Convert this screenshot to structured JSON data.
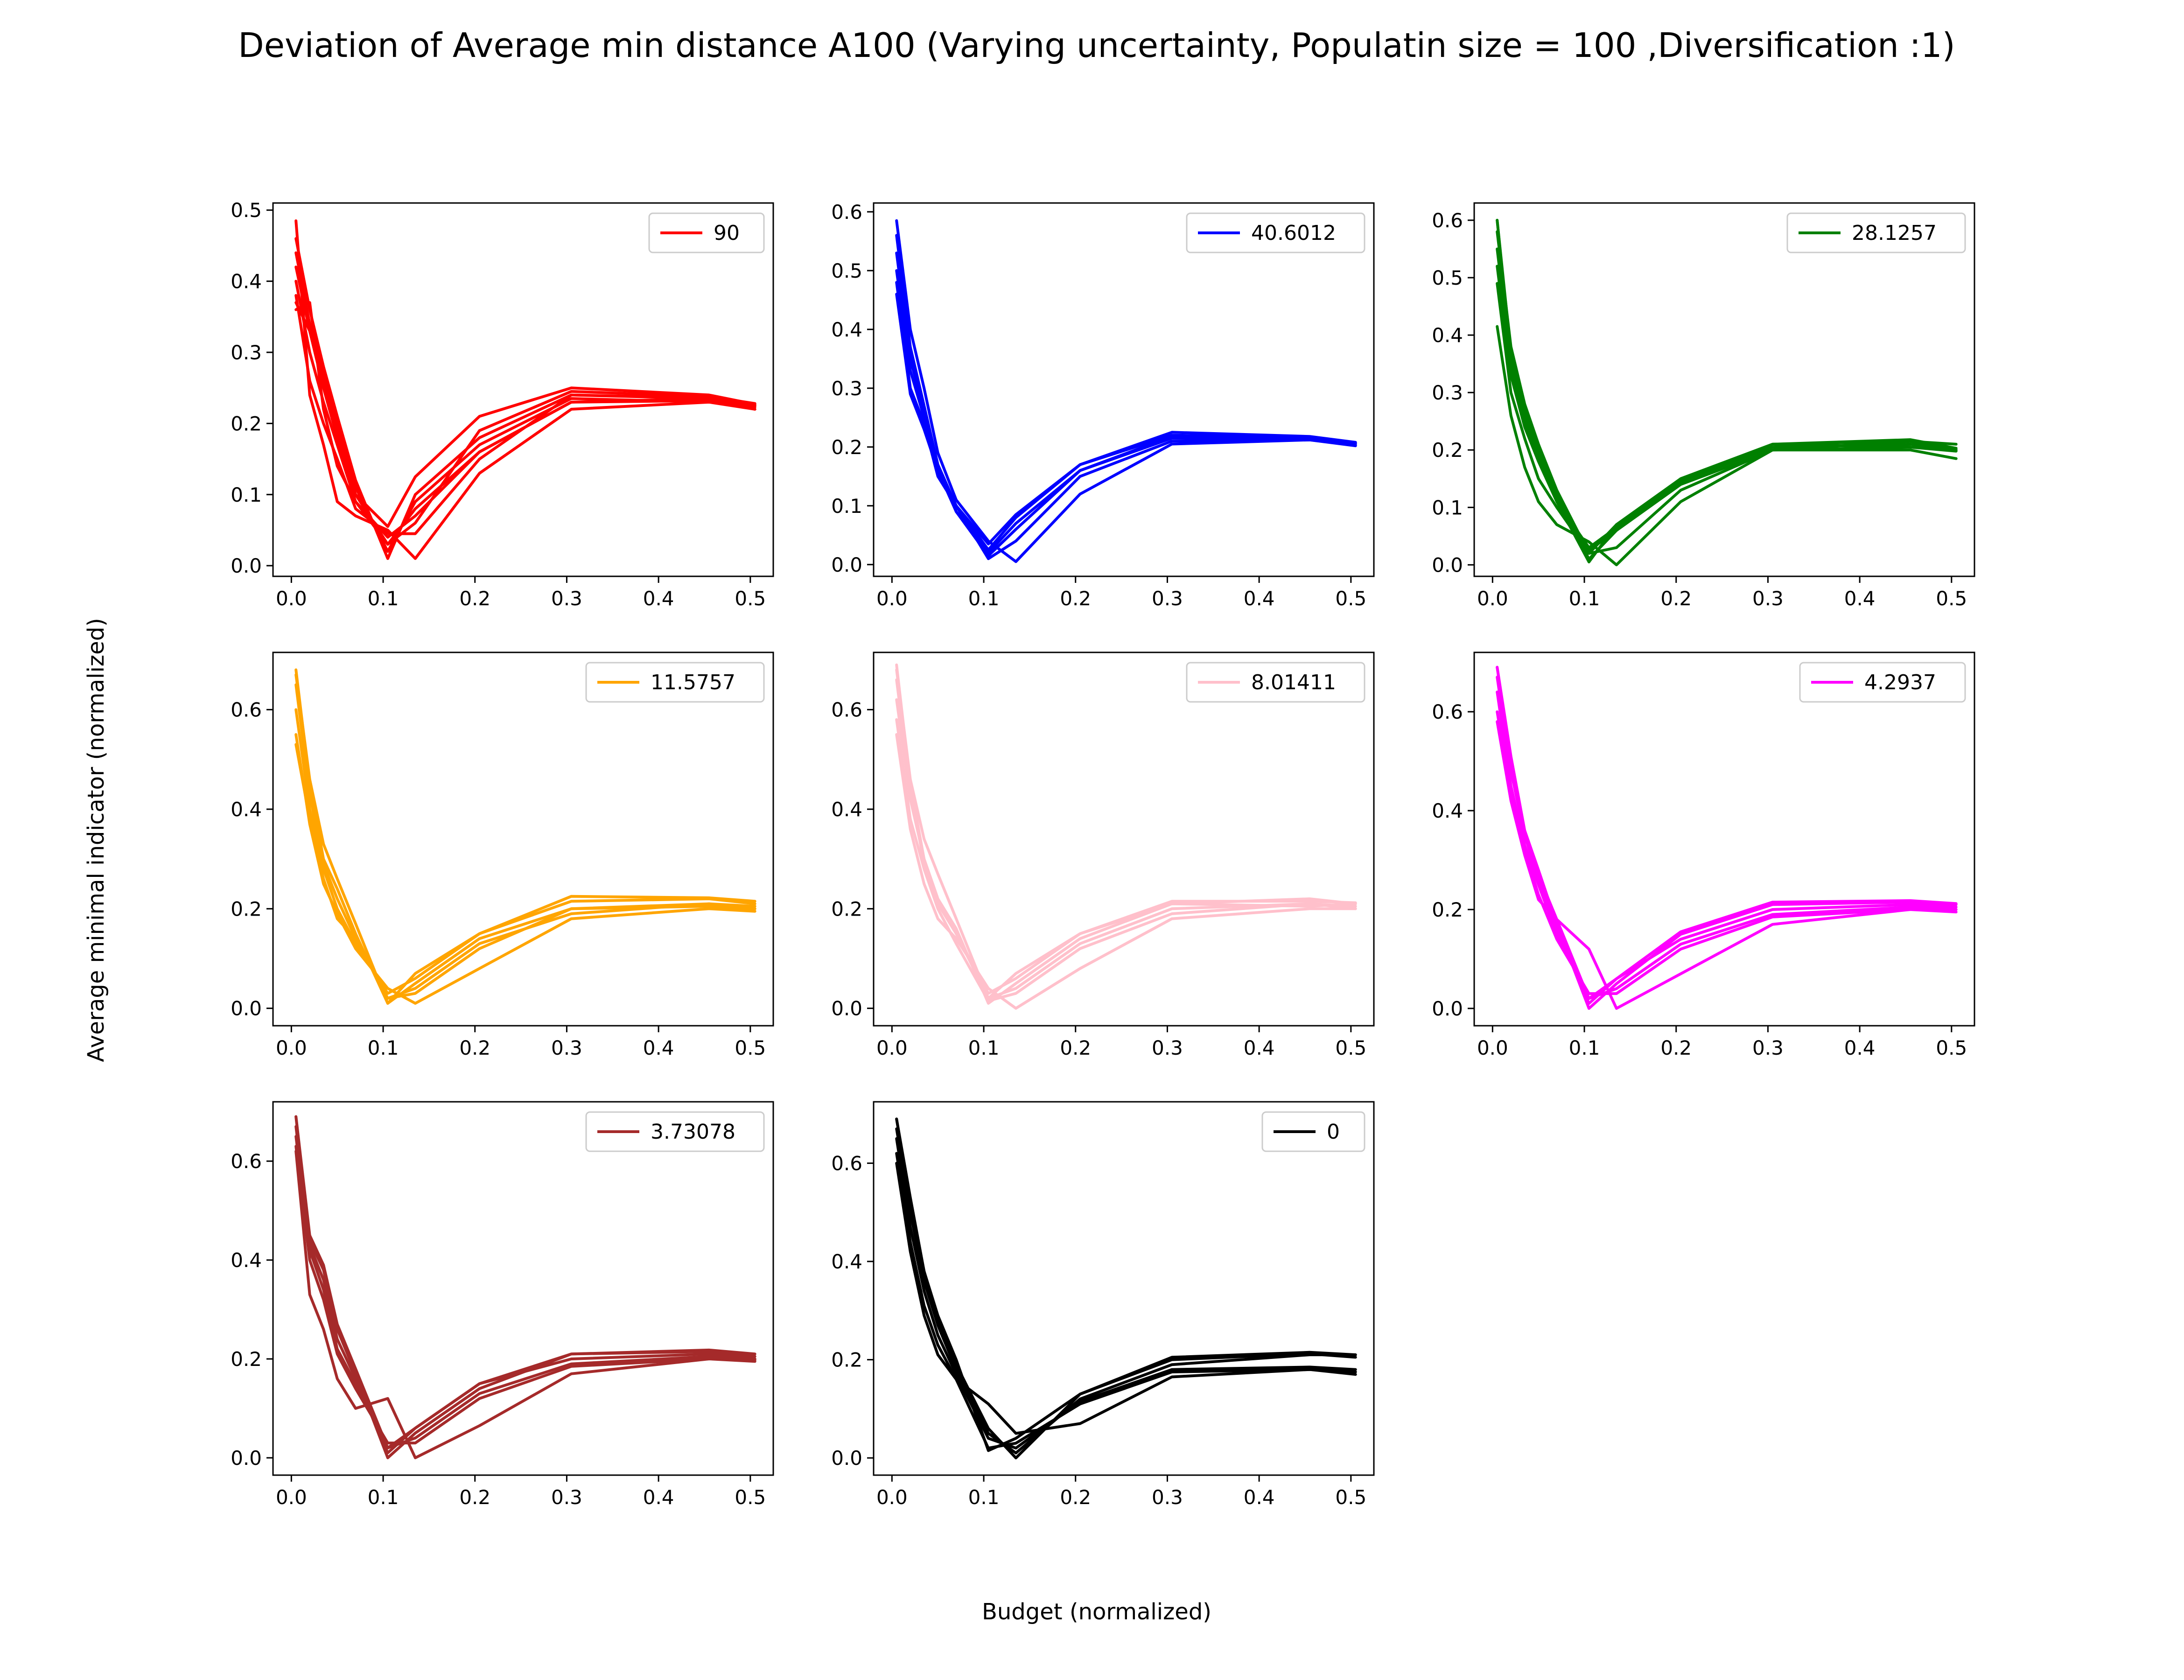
{
  "figure": {
    "title": "Deviation of Average min distance A100 (Varying uncertainty, Populatin size = 100 ,Diversification :1)",
    "xlabel": "Budget (normalized)",
    "ylabel": "Average minimal indicator (normalized)"
  },
  "chart_data": [
    {
      "type": "line",
      "legend": "90",
      "color": "#ff0000",
      "legend_position": "upper right",
      "xlim": [
        -0.02,
        0.525
      ],
      "ylim": [
        -0.015,
        0.51
      ],
      "xticks": [
        0.0,
        0.1,
        0.2,
        0.3,
        0.4,
        0.5
      ],
      "yticks": [
        0.0,
        0.1,
        0.2,
        0.3,
        0.4,
        0.5
      ],
      "x": [
        0.005,
        0.02,
        0.035,
        0.05,
        0.07,
        0.105,
        0.135,
        0.205,
        0.305,
        0.455,
        0.505
      ],
      "series": [
        {
          "values": [
            0.485,
            0.24,
            0.17,
            0.09,
            0.07,
            0.05,
            0.01,
            0.13,
            0.22,
            0.23,
            0.225
          ]
        },
        {
          "values": [
            0.46,
            0.36,
            0.28,
            0.21,
            0.12,
            0.01,
            0.1,
            0.18,
            0.24,
            0.235,
            0.22
          ]
        },
        {
          "values": [
            0.44,
            0.34,
            0.27,
            0.2,
            0.11,
            0.02,
            0.09,
            0.17,
            0.235,
            0.23,
            0.22
          ]
        },
        {
          "values": [
            0.42,
            0.33,
            0.26,
            0.19,
            0.1,
            0.03,
            0.08,
            0.16,
            0.23,
            0.232,
            0.223
          ]
        },
        {
          "values": [
            0.4,
            0.3,
            0.23,
            0.17,
            0.09,
            0.04,
            0.07,
            0.16,
            0.23,
            0.235,
            0.225
          ]
        },
        {
          "values": [
            0.38,
            0.26,
            0.2,
            0.15,
            0.08,
            0.045,
            0.045,
            0.15,
            0.24,
            0.236,
            0.226
          ]
        },
        {
          "values": [
            0.36,
            0.37,
            0.22,
            0.14,
            0.09,
            0.03,
            0.06,
            0.19,
            0.245,
            0.238,
            0.228
          ]
        },
        {
          "values": [
            0.37,
            0.33,
            0.25,
            0.18,
            0.1,
            0.055,
            0.125,
            0.21,
            0.25,
            0.24,
            0.227
          ]
        }
      ]
    },
    {
      "type": "line",
      "legend": "40.6012",
      "color": "#0000ff",
      "legend_position": "upper right",
      "xlim": [
        -0.02,
        0.525
      ],
      "ylim": [
        -0.02,
        0.615
      ],
      "xticks": [
        0.0,
        0.1,
        0.2,
        0.3,
        0.4,
        0.5
      ],
      "yticks": [
        0.0,
        0.1,
        0.2,
        0.3,
        0.4,
        0.5,
        0.6
      ],
      "x": [
        0.005,
        0.02,
        0.035,
        0.05,
        0.07,
        0.105,
        0.135,
        0.205,
        0.305,
        0.455,
        0.505
      ],
      "series": [
        {
          "values": [
            0.585,
            0.4,
            0.3,
            0.19,
            0.11,
            0.04,
            0.005,
            0.12,
            0.205,
            0.212,
            0.202
          ]
        },
        {
          "values": [
            0.56,
            0.37,
            0.27,
            0.17,
            0.1,
            0.01,
            0.04,
            0.15,
            0.21,
            0.212,
            0.203
          ]
        },
        {
          "values": [
            0.53,
            0.35,
            0.26,
            0.17,
            0.09,
            0.015,
            0.06,
            0.16,
            0.215,
            0.214,
            0.205
          ]
        },
        {
          "values": [
            0.5,
            0.33,
            0.25,
            0.16,
            0.09,
            0.02,
            0.07,
            0.16,
            0.218,
            0.215,
            0.206
          ]
        },
        {
          "values": [
            0.48,
            0.3,
            0.24,
            0.15,
            0.1,
            0.025,
            0.08,
            0.17,
            0.22,
            0.216,
            0.207
          ]
        },
        {
          "values": [
            0.46,
            0.29,
            0.23,
            0.16,
            0.1,
            0.035,
            0.085,
            0.17,
            0.225,
            0.218,
            0.208
          ]
        }
      ]
    },
    {
      "type": "line",
      "legend": "28.1257",
      "color": "#008000",
      "legend_position": "upper right",
      "xlim": [
        -0.02,
        0.525
      ],
      "ylim": [
        -0.02,
        0.63
      ],
      "xticks": [
        0.0,
        0.1,
        0.2,
        0.3,
        0.4,
        0.5
      ],
      "yticks": [
        0.0,
        0.1,
        0.2,
        0.3,
        0.4,
        0.5,
        0.6
      ],
      "x": [
        0.005,
        0.02,
        0.035,
        0.05,
        0.07,
        0.105,
        0.135,
        0.205,
        0.305,
        0.455,
        0.505
      ],
      "series": [
        {
          "values": [
            0.6,
            0.36,
            0.27,
            0.2,
            0.12,
            0.01,
            0.06,
            0.14,
            0.2,
            0.215,
            0.2
          ]
        },
        {
          "values": [
            0.58,
            0.38,
            0.28,
            0.21,
            0.13,
            0.02,
            0.07,
            0.15,
            0.21,
            0.218,
            0.203
          ]
        },
        {
          "values": [
            0.55,
            0.35,
            0.25,
            0.19,
            0.11,
            0.03,
            0.065,
            0.145,
            0.205,
            0.21,
            0.2
          ]
        },
        {
          "values": [
            0.52,
            0.33,
            0.24,
            0.18,
            0.11,
            0.005,
            0.07,
            0.15,
            0.21,
            0.205,
            0.198
          ]
        },
        {
          "values": [
            0.49,
            0.3,
            0.22,
            0.15,
            0.1,
            0.02,
            0.03,
            0.13,
            0.2,
            0.205,
            0.2
          ]
        },
        {
          "values": [
            0.415,
            0.26,
            0.17,
            0.11,
            0.07,
            0.04,
            0.0,
            0.11,
            0.2,
            0.2,
            0.185
          ]
        },
        {
          "values": [
            0.6,
            0.37,
            0.26,
            0.19,
            0.12,
            0.025,
            0.06,
            0.15,
            0.21,
            0.215,
            0.21
          ]
        }
      ]
    },
    {
      "type": "line",
      "legend": "11.5757",
      "color": "#ffa500",
      "legend_position": "upper right",
      "xlim": [
        -0.02,
        0.525
      ],
      "ylim": [
        -0.035,
        0.715
      ],
      "xticks": [
        0.0,
        0.1,
        0.2,
        0.3,
        0.4,
        0.5
      ],
      "yticks": [
        0.0,
        0.2,
        0.4,
        0.6
      ],
      "x": [
        0.005,
        0.02,
        0.035,
        0.05,
        0.07,
        0.105,
        0.135,
        0.205,
        0.305,
        0.455,
        0.505
      ],
      "series": [
        {
          "values": [
            0.68,
            0.45,
            0.3,
            0.24,
            0.15,
            0.01,
            0.05,
            0.14,
            0.2,
            0.205,
            0.2
          ]
        },
        {
          "values": [
            0.65,
            0.43,
            0.29,
            0.22,
            0.14,
            0.02,
            0.04,
            0.13,
            0.19,
            0.21,
            0.205
          ]
        },
        {
          "values": [
            0.6,
            0.4,
            0.28,
            0.2,
            0.13,
            0.03,
            0.06,
            0.15,
            0.215,
            0.22,
            0.21
          ]
        },
        {
          "values": [
            0.55,
            0.37,
            0.25,
            0.19,
            0.12,
            0.04,
            0.01,
            0.08,
            0.18,
            0.2,
            0.195
          ]
        },
        {
          "values": [
            0.53,
            0.38,
            0.26,
            0.18,
            0.14,
            0.02,
            0.03,
            0.12,
            0.2,
            0.21,
            0.2
          ]
        },
        {
          "values": [
            0.67,
            0.46,
            0.33,
            0.26,
            0.17,
            0.01,
            0.07,
            0.15,
            0.225,
            0.222,
            0.215
          ]
        }
      ]
    },
    {
      "type": "line",
      "legend": "8.01411",
      "color": "#ffc0cb",
      "legend_position": "upper right",
      "xlim": [
        -0.02,
        0.525
      ],
      "ylim": [
        -0.035,
        0.715
      ],
      "xticks": [
        0.0,
        0.1,
        0.2,
        0.3,
        0.4,
        0.5
      ],
      "yticks": [
        0.0,
        0.2,
        0.4,
        0.6
      ],
      "x": [
        0.005,
        0.02,
        0.035,
        0.05,
        0.07,
        0.105,
        0.135,
        0.205,
        0.305,
        0.455,
        0.505
      ],
      "series": [
        {
          "values": [
            0.69,
            0.45,
            0.3,
            0.22,
            0.16,
            0.01,
            0.05,
            0.14,
            0.21,
            0.205,
            0.21
          ]
        },
        {
          "values": [
            0.66,
            0.44,
            0.29,
            0.21,
            0.15,
            0.02,
            0.04,
            0.13,
            0.2,
            0.21,
            0.2
          ]
        },
        {
          "values": [
            0.62,
            0.42,
            0.3,
            0.22,
            0.15,
            0.03,
            0.06,
            0.15,
            0.21,
            0.22,
            0.21
          ]
        },
        {
          "values": [
            0.58,
            0.38,
            0.28,
            0.2,
            0.13,
            0.015,
            0.03,
            0.12,
            0.19,
            0.21,
            0.205
          ]
        },
        {
          "values": [
            0.55,
            0.36,
            0.25,
            0.18,
            0.14,
            0.04,
            0.0,
            0.08,
            0.18,
            0.2,
            0.2
          ]
        },
        {
          "values": [
            0.68,
            0.46,
            0.34,
            0.27,
            0.18,
            0.02,
            0.07,
            0.15,
            0.215,
            0.215,
            0.212
          ]
        }
      ]
    },
    {
      "type": "line",
      "legend": "4.2937",
      "color": "#ff00ff",
      "legend_position": "upper right",
      "xlim": [
        -0.02,
        0.525
      ],
      "ylim": [
        -0.035,
        0.72
      ],
      "xticks": [
        0.0,
        0.1,
        0.2,
        0.3,
        0.4,
        0.5
      ],
      "yticks": [
        0.0,
        0.2,
        0.4,
        0.6
      ],
      "x": [
        0.005,
        0.02,
        0.035,
        0.05,
        0.07,
        0.105,
        0.135,
        0.205,
        0.305,
        0.455,
        0.505
      ],
      "series": [
        {
          "values": [
            0.69,
            0.51,
            0.36,
            0.28,
            0.17,
            0.0,
            0.05,
            0.15,
            0.21,
            0.215,
            0.21
          ]
        },
        {
          "values": [
            0.67,
            0.48,
            0.35,
            0.26,
            0.16,
            0.01,
            0.06,
            0.14,
            0.2,
            0.21,
            0.205
          ]
        },
        {
          "values": [
            0.64,
            0.45,
            0.33,
            0.25,
            0.15,
            0.02,
            0.04,
            0.13,
            0.19,
            0.205,
            0.2
          ]
        },
        {
          "values": [
            0.6,
            0.43,
            0.32,
            0.23,
            0.14,
            0.03,
            0.03,
            0.12,
            0.185,
            0.2,
            0.2
          ]
        },
        {
          "values": [
            0.58,
            0.42,
            0.31,
            0.22,
            0.18,
            0.12,
            0.0,
            0.07,
            0.17,
            0.2,
            0.195
          ]
        },
        {
          "values": [
            0.69,
            0.5,
            0.35,
            0.27,
            0.18,
            0.02,
            0.06,
            0.155,
            0.215,
            0.218,
            0.212
          ]
        }
      ]
    },
    {
      "type": "line",
      "legend": "3.73078",
      "color": "#a52a2a",
      "legend_position": "upper right",
      "xlim": [
        -0.02,
        0.525
      ],
      "ylim": [
        -0.035,
        0.72
      ],
      "xticks": [
        0.0,
        0.1,
        0.2,
        0.3,
        0.4,
        0.5
      ],
      "yticks": [
        0.0,
        0.2,
        0.4,
        0.6
      ],
      "x": [
        0.005,
        0.02,
        0.035,
        0.05,
        0.07,
        0.105,
        0.135,
        0.205,
        0.305,
        0.455,
        0.505
      ],
      "series": [
        {
          "values": [
            0.69,
            0.44,
            0.38,
            0.26,
            0.17,
            0.0,
            0.05,
            0.14,
            0.21,
            0.215,
            0.205
          ]
        },
        {
          "values": [
            0.67,
            0.43,
            0.36,
            0.24,
            0.16,
            0.01,
            0.06,
            0.15,
            0.2,
            0.21,
            0.2
          ]
        },
        {
          "values": [
            0.65,
            0.42,
            0.34,
            0.22,
            0.15,
            0.02,
            0.04,
            0.13,
            0.19,
            0.205,
            0.198
          ]
        },
        {
          "values": [
            0.63,
            0.4,
            0.32,
            0.21,
            0.14,
            0.03,
            0.03,
            0.12,
            0.185,
            0.2,
            0.2
          ]
        },
        {
          "values": [
            0.62,
            0.33,
            0.26,
            0.16,
            0.1,
            0.12,
            0.0,
            0.065,
            0.17,
            0.2,
            0.195
          ]
        },
        {
          "values": [
            0.69,
            0.45,
            0.39,
            0.27,
            0.18,
            0.02,
            0.06,
            0.15,
            0.21,
            0.218,
            0.21
          ]
        }
      ]
    },
    {
      "type": "line",
      "legend": "0",
      "color": "#000000",
      "legend_position": "upper right",
      "xlim": [
        -0.02,
        0.525
      ],
      "ylim": [
        -0.035,
        0.725
      ],
      "xticks": [
        0.0,
        0.1,
        0.2,
        0.3,
        0.4,
        0.5
      ],
      "yticks": [
        0.0,
        0.2,
        0.4,
        0.6
      ],
      "x": [
        0.005,
        0.02,
        0.035,
        0.05,
        0.07,
        0.105,
        0.135,
        0.205,
        0.305,
        0.455,
        0.505
      ],
      "series": [
        {
          "values": [
            0.69,
            0.52,
            0.38,
            0.28,
            0.19,
            0.06,
            0.0,
            0.13,
            0.205,
            0.215,
            0.21
          ]
        },
        {
          "values": [
            0.67,
            0.5,
            0.36,
            0.27,
            0.18,
            0.05,
            0.01,
            0.12,
            0.19,
            0.21,
            0.21
          ]
        },
        {
          "values": [
            0.65,
            0.47,
            0.34,
            0.25,
            0.17,
            0.04,
            0.02,
            0.115,
            0.18,
            0.185,
            0.18
          ]
        },
        {
          "values": [
            0.62,
            0.44,
            0.31,
            0.23,
            0.16,
            0.02,
            0.03,
            0.11,
            0.175,
            0.18,
            0.175
          ]
        },
        {
          "values": [
            0.6,
            0.42,
            0.29,
            0.21,
            0.16,
            0.11,
            0.05,
            0.07,
            0.165,
            0.18,
            0.17
          ]
        },
        {
          "values": [
            0.69,
            0.53,
            0.38,
            0.29,
            0.2,
            0.015,
            0.04,
            0.13,
            0.2,
            0.212,
            0.205
          ]
        }
      ]
    }
  ]
}
